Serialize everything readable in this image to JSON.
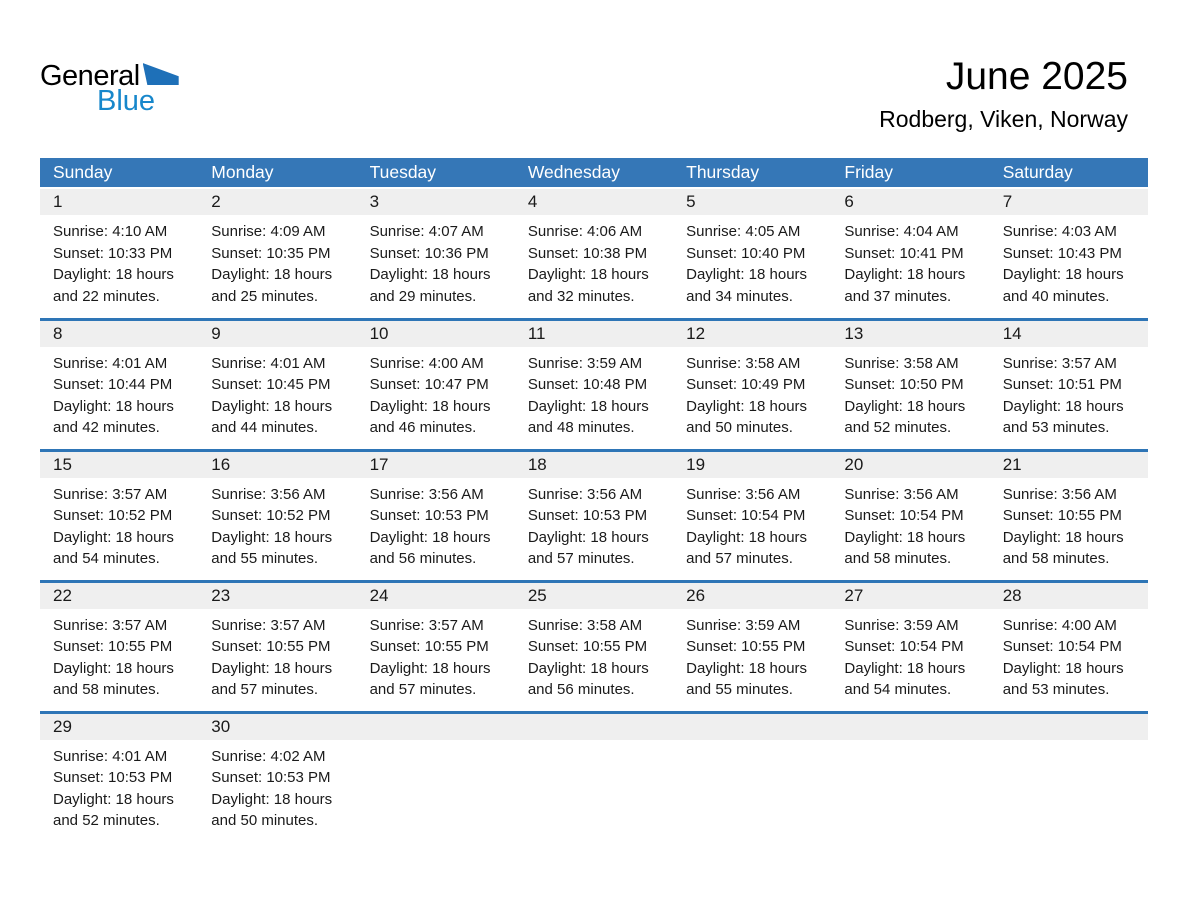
{
  "logo": {
    "general": "General",
    "blue": "Blue",
    "colors": {
      "general_text": "#000000",
      "blue_text": "#1787CB",
      "triangle": "#1E70B8"
    }
  },
  "header": {
    "title": "June 2025",
    "subtitle": "Rodberg, Viken, Norway"
  },
  "calendar": {
    "colors": {
      "header_bg": "#3577B7",
      "header_text": "#FFFFFF",
      "week_divider": "#2E75B6",
      "day_band_bg": "#EFEFEF",
      "text": "#1A1A1A",
      "page_bg": "#FFFFFF"
    },
    "day_headers": [
      "Sunday",
      "Monday",
      "Tuesday",
      "Wednesday",
      "Thursday",
      "Friday",
      "Saturday"
    ],
    "labels": {
      "sunrise": "Sunrise",
      "sunset": "Sunset",
      "daylight": "Daylight",
      "hours": "hours",
      "and": "and",
      "minutes": "minutes"
    },
    "weeks": [
      [
        {
          "date": 1,
          "sunrise": "4:10 AM",
          "sunset": "10:33 PM",
          "daylight_hours": 18,
          "daylight_minutes": 22
        },
        {
          "date": 2,
          "sunrise": "4:09 AM",
          "sunset": "10:35 PM",
          "daylight_hours": 18,
          "daylight_minutes": 25
        },
        {
          "date": 3,
          "sunrise": "4:07 AM",
          "sunset": "10:36 PM",
          "daylight_hours": 18,
          "daylight_minutes": 29
        },
        {
          "date": 4,
          "sunrise": "4:06 AM",
          "sunset": "10:38 PM",
          "daylight_hours": 18,
          "daylight_minutes": 32
        },
        {
          "date": 5,
          "sunrise": "4:05 AM",
          "sunset": "10:40 PM",
          "daylight_hours": 18,
          "daylight_minutes": 34
        },
        {
          "date": 6,
          "sunrise": "4:04 AM",
          "sunset": "10:41 PM",
          "daylight_hours": 18,
          "daylight_minutes": 37
        },
        {
          "date": 7,
          "sunrise": "4:03 AM",
          "sunset": "10:43 PM",
          "daylight_hours": 18,
          "daylight_minutes": 40
        }
      ],
      [
        {
          "date": 8,
          "sunrise": "4:01 AM",
          "sunset": "10:44 PM",
          "daylight_hours": 18,
          "daylight_minutes": 42
        },
        {
          "date": 9,
          "sunrise": "4:01 AM",
          "sunset": "10:45 PM",
          "daylight_hours": 18,
          "daylight_minutes": 44
        },
        {
          "date": 10,
          "sunrise": "4:00 AM",
          "sunset": "10:47 PM",
          "daylight_hours": 18,
          "daylight_minutes": 46
        },
        {
          "date": 11,
          "sunrise": "3:59 AM",
          "sunset": "10:48 PM",
          "daylight_hours": 18,
          "daylight_minutes": 48
        },
        {
          "date": 12,
          "sunrise": "3:58 AM",
          "sunset": "10:49 PM",
          "daylight_hours": 18,
          "daylight_minutes": 50
        },
        {
          "date": 13,
          "sunrise": "3:58 AM",
          "sunset": "10:50 PM",
          "daylight_hours": 18,
          "daylight_minutes": 52
        },
        {
          "date": 14,
          "sunrise": "3:57 AM",
          "sunset": "10:51 PM",
          "daylight_hours": 18,
          "daylight_minutes": 53
        }
      ],
      [
        {
          "date": 15,
          "sunrise": "3:57 AM",
          "sunset": "10:52 PM",
          "daylight_hours": 18,
          "daylight_minutes": 54
        },
        {
          "date": 16,
          "sunrise": "3:56 AM",
          "sunset": "10:52 PM",
          "daylight_hours": 18,
          "daylight_minutes": 55
        },
        {
          "date": 17,
          "sunrise": "3:56 AM",
          "sunset": "10:53 PM",
          "daylight_hours": 18,
          "daylight_minutes": 56
        },
        {
          "date": 18,
          "sunrise": "3:56 AM",
          "sunset": "10:53 PM",
          "daylight_hours": 18,
          "daylight_minutes": 57
        },
        {
          "date": 19,
          "sunrise": "3:56 AM",
          "sunset": "10:54 PM",
          "daylight_hours": 18,
          "daylight_minutes": 57
        },
        {
          "date": 20,
          "sunrise": "3:56 AM",
          "sunset": "10:54 PM",
          "daylight_hours": 18,
          "daylight_minutes": 58
        },
        {
          "date": 21,
          "sunrise": "3:56 AM",
          "sunset": "10:55 PM",
          "daylight_hours": 18,
          "daylight_minutes": 58
        }
      ],
      [
        {
          "date": 22,
          "sunrise": "3:57 AM",
          "sunset": "10:55 PM",
          "daylight_hours": 18,
          "daylight_minutes": 58
        },
        {
          "date": 23,
          "sunrise": "3:57 AM",
          "sunset": "10:55 PM",
          "daylight_hours": 18,
          "daylight_minutes": 57
        },
        {
          "date": 24,
          "sunrise": "3:57 AM",
          "sunset": "10:55 PM",
          "daylight_hours": 18,
          "daylight_minutes": 57
        },
        {
          "date": 25,
          "sunrise": "3:58 AM",
          "sunset": "10:55 PM",
          "daylight_hours": 18,
          "daylight_minutes": 56
        },
        {
          "date": 26,
          "sunrise": "3:59 AM",
          "sunset": "10:55 PM",
          "daylight_hours": 18,
          "daylight_minutes": 55
        },
        {
          "date": 27,
          "sunrise": "3:59 AM",
          "sunset": "10:54 PM",
          "daylight_hours": 18,
          "daylight_minutes": 54
        },
        {
          "date": 28,
          "sunrise": "4:00 AM",
          "sunset": "10:54 PM",
          "daylight_hours": 18,
          "daylight_minutes": 53
        }
      ],
      [
        {
          "date": 29,
          "sunrise": "4:01 AM",
          "sunset": "10:53 PM",
          "daylight_hours": 18,
          "daylight_minutes": 52
        },
        {
          "date": 30,
          "sunrise": "4:02 AM",
          "sunset": "10:53 PM",
          "daylight_hours": 18,
          "daylight_minutes": 50
        }
      ]
    ]
  }
}
